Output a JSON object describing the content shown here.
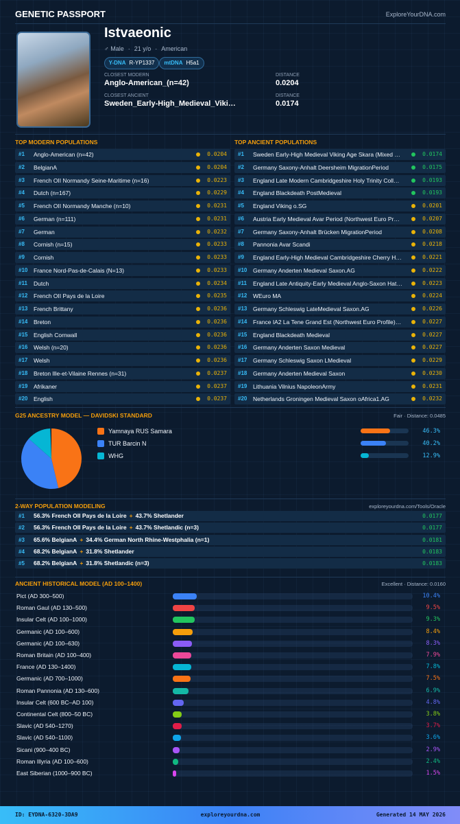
{
  "header": {
    "title": "GENETIC PASSPORT",
    "site": "ExploreYourDNA.com"
  },
  "profile": {
    "name": "Istvaeonic",
    "sex": "♂ Male",
    "separator": "·",
    "age": "21 y/o",
    "nationality": "American",
    "ydna_label": "Y-DNA",
    "ydna": "R-YP1337",
    "mtdna_label": "mtDNA",
    "mtdna": "H5a1",
    "closest_modern_label": "CLOSEST MODERN",
    "closest_modern": "Anglo-American_(n=42)",
    "distance_label": "DISTANCE",
    "closest_modern_distance": "0.0204",
    "closest_ancient_label": "CLOSEST ANCIENT",
    "closest_ancient": "Sweden_Early-High_Medieval_Viki…",
    "closest_ancient_distance": "0.0174"
  },
  "modern": {
    "title": "TOP MODERN POPULATIONS",
    "rows": [
      [
        "#1",
        "Anglo-American (n=42)",
        "0.0204"
      ],
      [
        "#2",
        "BelgianA",
        "0.0204"
      ],
      [
        "#3",
        "French OII Normandy Seine-Maritime (n=16)",
        "0.0223"
      ],
      [
        "#4",
        "Dutch (n=167)",
        "0.0229"
      ],
      [
        "#5",
        "French OII Normandy Manche (n=10)",
        "0.0231"
      ],
      [
        "#6",
        "German (n=111)",
        "0.0231"
      ],
      [
        "#7",
        "German",
        "0.0232"
      ],
      [
        "#8",
        "Cornish (n=15)",
        "0.0233"
      ],
      [
        "#9",
        "Cornish",
        "0.0233"
      ],
      [
        "#10",
        "France Nord-Pas-de-Calais (N=13)",
        "0.0233"
      ],
      [
        "#11",
        "Dutch",
        "0.0234"
      ],
      [
        "#12",
        "French OII Pays de la Loire",
        "0.0235"
      ],
      [
        "#13",
        "French Brittany",
        "0.0236"
      ],
      [
        "#14",
        "Breton",
        "0.0236"
      ],
      [
        "#15",
        "English Cornwall",
        "0.0236"
      ],
      [
        "#16",
        "Welsh (n=20)",
        "0.0236"
      ],
      [
        "#17",
        "Welsh",
        "0.0236"
      ],
      [
        "#18",
        "Breton Ille-et-Vilaine Rennes (n=31)",
        "0.0237"
      ],
      [
        "#19",
        "Afrikaner",
        "0.0237"
      ],
      [
        "#20",
        "English",
        "0.0237"
      ]
    ]
  },
  "ancient": {
    "title": "TOP ANCIENT POPULATIONS",
    "rows": [
      [
        "#1",
        "Sweden Early-High Medieval Viking Age Skara (Mixed Nor…",
        "0.0174"
      ],
      [
        "#2",
        "Germany Saxony-Anhalt Deersheim MigrationPeriod",
        "0.0175"
      ],
      [
        "#3",
        "England Late Modern Cambridgeshire Holy Trinity College …",
        "0.0193"
      ],
      [
        "#4",
        "England Blackdeath PostMedieval",
        "0.0193"
      ],
      [
        "#5",
        "England Viking o.SG",
        "0.0201"
      ],
      [
        "#6",
        "Austria Early Medieval Avar Period (Northwest Euro Profile…",
        "0.0207"
      ],
      [
        "#7",
        "Germany Saxony-Anhalt Brücken MigrationPeriod",
        "0.0208"
      ],
      [
        "#8",
        "Pannonia Avar Scandi",
        "0.0218"
      ],
      [
        "#9",
        "England Early-High Medieval Cambridgeshire Cherry Hinto…",
        "0.0221"
      ],
      [
        "#10",
        "Germany Anderten Medieval Saxon.AG",
        "0.0222"
      ],
      [
        "#11",
        "England Late Antiquity-Early Medieval Anglo-Saxon Hather…",
        "0.0223"
      ],
      [
        "#12",
        "WEuro MA",
        "0.0224"
      ],
      [
        "#13",
        "Germany Schleswig LateMedieval Saxon.AG",
        "0.0226"
      ],
      [
        "#14",
        "France IA2 La Tene Grand Est (Northwest Euro Profile) (n=7)",
        "0.0227"
      ],
      [
        "#15",
        "England Blackdeath Medieval",
        "0.0227"
      ],
      [
        "#16",
        "Germany Anderten Saxon Medieval",
        "0.0227"
      ],
      [
        "#17",
        "Germany Schleswig Saxon LMedieval",
        "0.0229"
      ],
      [
        "#18",
        "Germany Anderten Medieval Saxon",
        "0.0230"
      ],
      [
        "#19",
        "Lithuania Vilnius NapoleonArmy",
        "0.0231"
      ],
      [
        "#20",
        "Netherlands Groningen Medieval Saxon oAfrica1.AG",
        "0.0232"
      ]
    ]
  },
  "g25": {
    "title": "G25 ANCESTRY MODEL — DAVIDSKI STANDARD",
    "fit": "Fair · Distance: 0.0485",
    "components": [
      {
        "name": "Yamnaya RUS Samara",
        "pct": 46.3,
        "pct_label": "46.3%",
        "color": "#f97316"
      },
      {
        "name": "TUR Barcin N",
        "pct": 40.2,
        "pct_label": "40.2%",
        "color": "#3b82f6"
      },
      {
        "name": "WHG",
        "pct": 12.9,
        "pct_label": "12.9%",
        "color": "#06b6d4"
      }
    ]
  },
  "two_way": {
    "title": "2-WAY POPULATION MODELING",
    "link": "exploreyourdna.com/Tools/Oracle",
    "plus": "+",
    "rows": [
      {
        "rank": "#1",
        "a": "56.3% French OII Pays de la Loire",
        "b": "43.7% Shetlander",
        "distance": "0.0177"
      },
      {
        "rank": "#2",
        "a": "56.3% French OII Pays de la Loire",
        "b": "43.7% Shetlandic (n=3)",
        "distance": "0.0177"
      },
      {
        "rank": "#3",
        "a": "65.6% BelgianA",
        "b": "34.4% German North Rhine-Westphalia (n=1)",
        "distance": "0.0181"
      },
      {
        "rank": "#4",
        "a": "68.2% BelgianA",
        "b": "31.8% Shetlander",
        "distance": "0.0183"
      },
      {
        "rank": "#5",
        "a": "68.2% BelgianA",
        "b": "31.8% Shetlandic (n=3)",
        "distance": "0.0183"
      }
    ]
  },
  "historical": {
    "title": "ANCIENT HISTORICAL MODEL (AD 100–1400)",
    "fit": "Excellent · Distance: 0.0160",
    "rows": [
      {
        "name": "Pict (AD 300–500)",
        "pct": 10.4,
        "pct_label": "10.4%",
        "color": "#3b82f6"
      },
      {
        "name": "Roman Gaul (AD 130–500)",
        "pct": 9.5,
        "pct_label": "9.5%",
        "color": "#ef4444"
      },
      {
        "name": "Insular Celt (AD 100–1000)",
        "pct": 9.3,
        "pct_label": "9.3%",
        "color": "#22c55e"
      },
      {
        "name": "Germanic (AD 100–600)",
        "pct": 8.4,
        "pct_label": "8.4%",
        "color": "#f59e0b"
      },
      {
        "name": "Germanic (AD 100–630)",
        "pct": 8.3,
        "pct_label": "8.3%",
        "color": "#8b5cf6"
      },
      {
        "name": "Roman Britain (AD 100–400)",
        "pct": 7.9,
        "pct_label": "7.9%",
        "color": "#ec4899"
      },
      {
        "name": "France (AD 130–1400)",
        "pct": 7.8,
        "pct_label": "7.8%",
        "color": "#06b6d4"
      },
      {
        "name": "Germanic (AD 700–1000)",
        "pct": 7.5,
        "pct_label": "7.5%",
        "color": "#f97316"
      },
      {
        "name": "Roman Pannonia (AD 130–600)",
        "pct": 6.9,
        "pct_label": "6.9%",
        "color": "#14b8a6"
      },
      {
        "name": "Insular Celt (600 BC–AD 100)",
        "pct": 4.8,
        "pct_label": "4.8%",
        "color": "#6366f1"
      },
      {
        "name": "Continental Celt (800–50 BC)",
        "pct": 3.8,
        "pct_label": "3.8%",
        "color": "#84cc16"
      },
      {
        "name": "Slavic (AD 540–1270)",
        "pct": 3.7,
        "pct_label": "3.7%",
        "color": "#e11d48"
      },
      {
        "name": "Slavic (AD 540–1100)",
        "pct": 3.6,
        "pct_label": "3.6%",
        "color": "#0ea5e9"
      },
      {
        "name": "Sicani (900–400 BC)",
        "pct": 2.9,
        "pct_label": "2.9%",
        "color": "#a855f7"
      },
      {
        "name": "Roman Illyria (AD 100–600)",
        "pct": 2.4,
        "pct_label": "2.4%",
        "color": "#10b981"
      },
      {
        "name": "East Siberian (1000–900 BC)",
        "pct": 1.5,
        "pct_label": "1.5%",
        "color": "#d946ef"
      }
    ]
  },
  "footer": {
    "id": "ID: EYDNA-6320-3DA9",
    "site": "exploreyourdna.com",
    "generated": "Generated 14 MAY 2026"
  }
}
